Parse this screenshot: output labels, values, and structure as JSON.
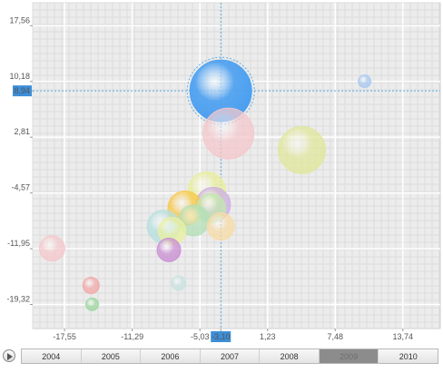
{
  "chart_data": {
    "type": "bubble",
    "title": "",
    "xlabel": "",
    "ylabel": "",
    "xlim": [
      -20.5,
      17.2
    ],
    "ylim": [
      -22.5,
      20.6
    ],
    "x_ticks": [
      "-17,55",
      "-11,29",
      "-5,03",
      "-3,10",
      "1,23",
      "7,48",
      "13,74"
    ],
    "y_ticks": [
      "17,56",
      "10,18",
      "8,94",
      "2,81",
      "-4,57",
      "-11,95",
      "-19,32"
    ],
    "grid": true,
    "crosshair": {
      "x": -3.1,
      "y": 8.94,
      "x_label": "-3,10",
      "y_label": "8,94"
    },
    "points": [
      {
        "x": -3.1,
        "y": 8.94,
        "size": 34,
        "color": "#4a9ff0",
        "highlighted": true
      },
      {
        "x": 10.2,
        "y": 10.2,
        "size": 7,
        "color": "#a9c9f0"
      },
      {
        "x": -2.4,
        "y": 3.3,
        "size": 28,
        "color": "#f4c8cc"
      },
      {
        "x": 4.4,
        "y": 1.1,
        "size": 26,
        "color": "#e0e79c"
      },
      {
        "x": -4.4,
        "y": -4.3,
        "size": 21,
        "color": "#e8ee9c"
      },
      {
        "x": -3.8,
        "y": -6.1,
        "size": 19,
        "color": "#cdb0e3"
      },
      {
        "x": -6.4,
        "y": -6.6,
        "size": 19,
        "color": "#f9c84a"
      },
      {
        "x": -4.0,
        "y": -6.6,
        "size": 16,
        "color": "#c2e6b0"
      },
      {
        "x": -5.6,
        "y": -8.2,
        "size": 17,
        "color": "#b4e0b8"
      },
      {
        "x": -8.4,
        "y": -9.0,
        "size": 18,
        "color": "#b6e0de"
      },
      {
        "x": -7.6,
        "y": -9.6,
        "size": 15,
        "color": "#eaf0a0"
      },
      {
        "x": -3.1,
        "y": -9.0,
        "size": 15,
        "color": "#f7dca8"
      },
      {
        "x": -7.9,
        "y": -12.1,
        "size": 13,
        "color": "#c98fd2"
      },
      {
        "x": -18.7,
        "y": -11.9,
        "size": 14,
        "color": "#f4c8cc"
      },
      {
        "x": -15.1,
        "y": -16.8,
        "size": 9,
        "color": "#f2a9a9"
      },
      {
        "x": -7.0,
        "y": -16.5,
        "size": 8,
        "color": "#c9e3e0"
      },
      {
        "x": -15.0,
        "y": -19.3,
        "size": 7,
        "color": "#9fd79f"
      }
    ]
  },
  "timeline": {
    "play_icon": "play-icon",
    "years": [
      "2004",
      "2005",
      "2006",
      "2007",
      "2008",
      "2009",
      "2010"
    ],
    "active_year": "2009"
  }
}
